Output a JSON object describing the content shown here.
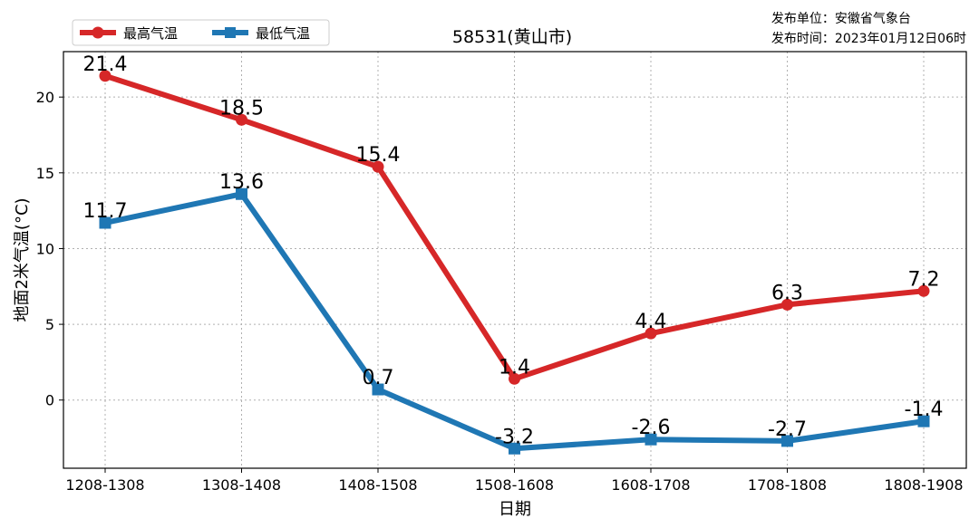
{
  "issuer": {
    "unit": "发布单位：安徽省气象台",
    "time": "发布时间：2023年01月12日06时"
  },
  "chart_data": {
    "type": "line",
    "title": "58531(黄山市)",
    "xlabel": "日期",
    "ylabel": "地面2米气温(°C)",
    "categories": [
      "1208-1308",
      "1308-1408",
      "1408-1508",
      "1508-1608",
      "1608-1708",
      "1708-1808",
      "1808-1908"
    ],
    "ylim": [
      -4.5,
      23
    ],
    "yticks": [
      0,
      5,
      10,
      15,
      20
    ],
    "grid": true,
    "legend_position": "top-left",
    "series": [
      {
        "name": "最高气温",
        "color": "#d62728",
        "marker": "circle",
        "values": [
          21.4,
          18.5,
          15.4,
          1.4,
          4.4,
          6.3,
          7.2
        ],
        "labels": [
          "21.4",
          "18.5",
          "15.4",
          "1.4",
          "4.4",
          "6.3",
          "7.2"
        ]
      },
      {
        "name": "最低气温",
        "color": "#1f77b4",
        "marker": "square",
        "values": [
          11.7,
          13.6,
          0.7,
          -3.2,
          -2.6,
          -2.7,
          -1.4
        ],
        "labels": [
          "11.7",
          "13.6",
          "0.7",
          "-3.2",
          "-2.6",
          "-2.7",
          "-1.4"
        ]
      }
    ]
  }
}
